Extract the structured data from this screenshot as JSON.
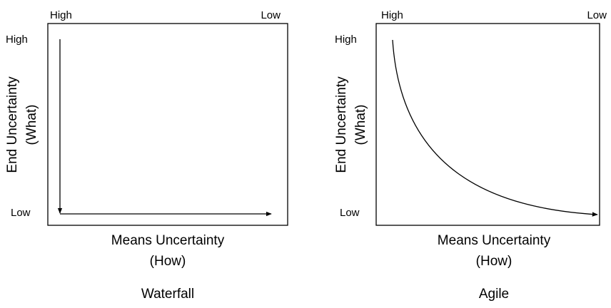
{
  "panels": [
    {
      "top_left_label": "High",
      "top_right_label": "Low",
      "y_high_label": "High",
      "y_low_label": "Low",
      "y_axis_line1": "End Uncertainty",
      "y_axis_line2": "(What)",
      "x_axis_line1": "Means Uncertainty",
      "x_axis_line2": "(How)",
      "caption": "Waterfall"
    },
    {
      "top_left_label": "High",
      "top_right_label": "Low",
      "y_high_label": "High",
      "y_low_label": "Low",
      "y_axis_line1": "End Uncertainty",
      "y_axis_line2": "(What)",
      "x_axis_line1": "Means Uncertainty",
      "x_axis_line2": "(How)",
      "caption": "Agile"
    }
  ]
}
